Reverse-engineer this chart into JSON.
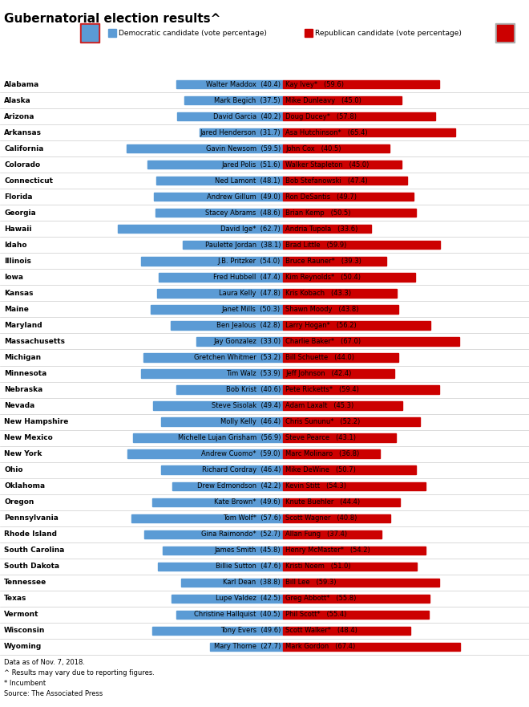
{
  "title": "Gubernatorial election results^",
  "footnotes": [
    "Data as of Nov. 7, 2018.",
    "^ Results may vary due to reporting figures.",
    "* Incumbent",
    "Source: The Associated Press"
  ],
  "dem_color": "#5b9bd5",
  "rep_color": "#cc0000",
  "legend_dem": "Democratic candidate (vote percentage)",
  "legend_rep": "Republican candidate (vote percentage)",
  "bar_scale": 0.8,
  "states": [
    {
      "state": "Alabama",
      "dem_name": "Walter Maddox",
      "dem_pct": 40.4,
      "rep_name": "Kay Ivey*",
      "rep_pct": 59.6
    },
    {
      "state": "Alaska",
      "dem_name": "Mark Begich",
      "dem_pct": 37.5,
      "rep_name": "Mike Dunleavy",
      "rep_pct": 45.0
    },
    {
      "state": "Arizona",
      "dem_name": "David Garcia",
      "dem_pct": 40.2,
      "rep_name": "Doug Ducey*",
      "rep_pct": 57.8
    },
    {
      "state": "Arkansas",
      "dem_name": "Jared Henderson",
      "dem_pct": 31.7,
      "rep_name": "Asa Hutchinson*",
      "rep_pct": 65.4
    },
    {
      "state": "California",
      "dem_name": "Gavin Newsom",
      "dem_pct": 59.5,
      "rep_name": "John Cox",
      "rep_pct": 40.5
    },
    {
      "state": "Colorado",
      "dem_name": "Jared Polis",
      "dem_pct": 51.6,
      "rep_name": "Walker Stapleton",
      "rep_pct": 45.0
    },
    {
      "state": "Connecticut",
      "dem_name": "Ned Lamont",
      "dem_pct": 48.1,
      "rep_name": "Bob Stefanowski",
      "rep_pct": 47.4
    },
    {
      "state": "Florida",
      "dem_name": "Andrew Gillum",
      "dem_pct": 49.0,
      "rep_name": "Ron DeSantis",
      "rep_pct": 49.7
    },
    {
      "state": "Georgia",
      "dem_name": "Stacey Abrams",
      "dem_pct": 48.6,
      "rep_name": "Brian Kemp",
      "rep_pct": 50.5
    },
    {
      "state": "Hawaii",
      "dem_name": "David Ige*",
      "dem_pct": 62.7,
      "rep_name": "Andria Tupola",
      "rep_pct": 33.6
    },
    {
      "state": "Idaho",
      "dem_name": "Paulette Jordan",
      "dem_pct": 38.1,
      "rep_name": "Brad Little",
      "rep_pct": 59.9
    },
    {
      "state": "Illinois",
      "dem_name": "J.B. Pritzker",
      "dem_pct": 54.0,
      "rep_name": "Bruce Rauner*",
      "rep_pct": 39.3
    },
    {
      "state": "Iowa",
      "dem_name": "Fred Hubbell",
      "dem_pct": 47.4,
      "rep_name": "Kim Reynolds*",
      "rep_pct": 50.4
    },
    {
      "state": "Kansas",
      "dem_name": "Laura Kelly",
      "dem_pct": 47.8,
      "rep_name": "Kris Kobach",
      "rep_pct": 43.3
    },
    {
      "state": "Maine",
      "dem_name": "Janet Mills",
      "dem_pct": 50.3,
      "rep_name": "Shawn Moody",
      "rep_pct": 43.8
    },
    {
      "state": "Maryland",
      "dem_name": "Ben Jealous",
      "dem_pct": 42.8,
      "rep_name": "Larry Hogan*",
      "rep_pct": 56.2
    },
    {
      "state": "Massachusetts",
      "dem_name": "Jay Gonzalez",
      "dem_pct": 33.0,
      "rep_name": "Charlie Baker*",
      "rep_pct": 67.0
    },
    {
      "state": "Michigan",
      "dem_name": "Gretchen Whitmer",
      "dem_pct": 53.2,
      "rep_name": "Bill Schuette",
      "rep_pct": 44.0
    },
    {
      "state": "Minnesota",
      "dem_name": "Tim Walz",
      "dem_pct": 53.9,
      "rep_name": "Jeff Johnson",
      "rep_pct": 42.4
    },
    {
      "state": "Nebraska",
      "dem_name": "Bob Krist",
      "dem_pct": 40.6,
      "rep_name": "Pete Ricketts*",
      "rep_pct": 59.4
    },
    {
      "state": "Nevada",
      "dem_name": "Steve Sisolak",
      "dem_pct": 49.4,
      "rep_name": "Adam Laxalt",
      "rep_pct": 45.3
    },
    {
      "state": "New Hampshire",
      "dem_name": "Molly Kelly",
      "dem_pct": 46.4,
      "rep_name": "Chris Sununu*",
      "rep_pct": 52.2
    },
    {
      "state": "New Mexico",
      "dem_name": "Michelle Lujan Grisham",
      "dem_pct": 56.9,
      "rep_name": "Steve Pearce",
      "rep_pct": 43.1
    },
    {
      "state": "New York",
      "dem_name": "Andrew Cuomo*",
      "dem_pct": 59.0,
      "rep_name": "Marc Molinaro",
      "rep_pct": 36.8
    },
    {
      "state": "Ohio",
      "dem_name": "Richard Cordray",
      "dem_pct": 46.4,
      "rep_name": "Mike DeWine",
      "rep_pct": 50.7
    },
    {
      "state": "Oklahoma",
      "dem_name": "Drew Edmondson",
      "dem_pct": 42.2,
      "rep_name": "Kevin Stitt",
      "rep_pct": 54.3
    },
    {
      "state": "Oregon",
      "dem_name": "Kate Brown*",
      "dem_pct": 49.6,
      "rep_name": "Knute Buehler",
      "rep_pct": 44.4
    },
    {
      "state": "Pennsylvania",
      "dem_name": "Tom Wolf*",
      "dem_pct": 57.6,
      "rep_name": "Scott Wagner",
      "rep_pct": 40.8
    },
    {
      "state": "Rhode Island",
      "dem_name": "Gina Raimondo*",
      "dem_pct": 52.7,
      "rep_name": "Allan Fung",
      "rep_pct": 37.4
    },
    {
      "state": "South Carolina",
      "dem_name": "James Smith",
      "dem_pct": 45.8,
      "rep_name": "Henry McMaster*",
      "rep_pct": 54.2
    },
    {
      "state": "South Dakota",
      "dem_name": "Billie Sutton",
      "dem_pct": 47.6,
      "rep_name": "Kristi Noem",
      "rep_pct": 51.0
    },
    {
      "state": "Tennessee",
      "dem_name": "Karl Dean",
      "dem_pct": 38.8,
      "rep_name": "Bill Lee",
      "rep_pct": 59.3
    },
    {
      "state": "Texas",
      "dem_name": "Lupe Valdez",
      "dem_pct": 42.5,
      "rep_name": "Greg Abbott*",
      "rep_pct": 55.8
    },
    {
      "state": "Vermont",
      "dem_name": "Christine Hallquist",
      "dem_pct": 40.5,
      "rep_name": "Phil Scott*",
      "rep_pct": 55.4
    },
    {
      "state": "Wisconsin",
      "dem_name": "Tony Evers",
      "dem_pct": 49.6,
      "rep_name": "Scott Walker*",
      "rep_pct": 48.4
    },
    {
      "state": "Wyoming",
      "dem_name": "Mary Thorne",
      "dem_pct": 27.7,
      "rep_name": "Mark Gordon",
      "rep_pct": 67.4
    }
  ]
}
